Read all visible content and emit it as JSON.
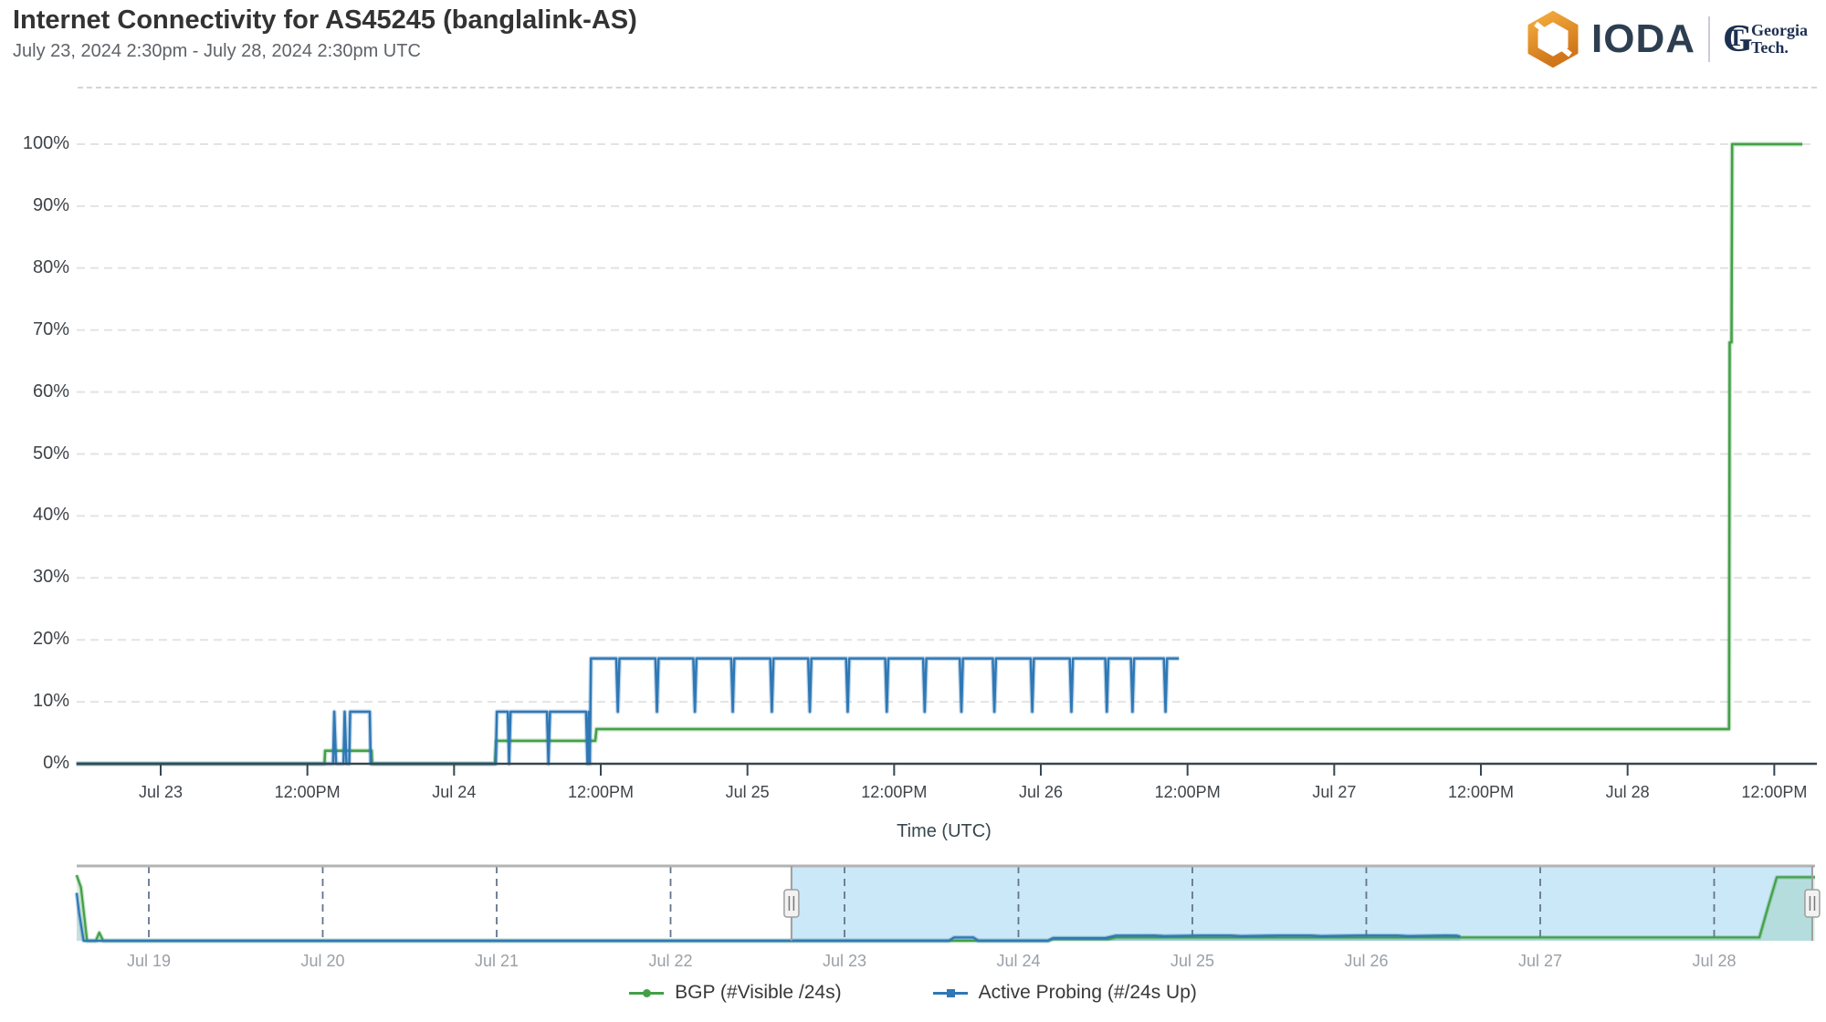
{
  "header": {
    "title": "Internet Connectivity for AS45245 (banglalink-AS)",
    "subtitle": "July 23, 2024 2:30pm - July 28, 2024 2:30pm UTC",
    "brand": {
      "ioda_wordmark": "IODA",
      "gt_monogram_g": "G",
      "gt_monogram_t": "T",
      "georgia": "Georgia",
      "tech": "Tech."
    }
  },
  "colors": {
    "bgp_green": "#43a047",
    "probing_blue": "#2f78b5",
    "grid_line": "#e3e3e3",
    "axis_line": "#37474f",
    "nav_grid": "#64748b",
    "brush_fill": "#cbe8f8",
    "handle_fill": "#f2f2f2",
    "handle_border": "#9e9e9e",
    "navy": "#2d3e50",
    "logo_orange_light": "#f3ab3c",
    "logo_orange_dark": "#d0771b"
  },
  "main_chart": {
    "axis_title": "Time (UTC)",
    "y_ticks": [
      {
        "value": 0,
        "label": "0%"
      },
      {
        "value": 10,
        "label": "10%"
      },
      {
        "value": 20,
        "label": "20%"
      },
      {
        "value": 30,
        "label": "30%"
      },
      {
        "value": 40,
        "label": "40%"
      },
      {
        "value": 50,
        "label": "50%"
      },
      {
        "value": 60,
        "label": "60%"
      },
      {
        "value": 70,
        "label": "70%"
      },
      {
        "value": 80,
        "label": "80%"
      },
      {
        "value": 90,
        "label": "90%"
      },
      {
        "value": 100,
        "label": "100%"
      }
    ],
    "x_ticks": [
      {
        "hour": 0,
        "label": "Jul 23"
      },
      {
        "hour": 12,
        "label": "12:00PM"
      },
      {
        "hour": 24,
        "label": "Jul 24"
      },
      {
        "hour": 36,
        "label": "12:00PM"
      },
      {
        "hour": 48,
        "label": "Jul 25"
      },
      {
        "hour": 60,
        "label": "12:00PM"
      },
      {
        "hour": 72,
        "label": "Jul 26"
      },
      {
        "hour": 84,
        "label": "12:00PM"
      },
      {
        "hour": 96,
        "label": "Jul 27"
      },
      {
        "hour": 108,
        "label": "12:00PM"
      },
      {
        "hour": 120,
        "label": "Jul 28"
      },
      {
        "hour": 132,
        "label": "12:00PM"
      }
    ]
  },
  "navigator": {
    "ticks": [
      {
        "day": 0,
        "label": "Jul 19"
      },
      {
        "day": 1,
        "label": "Jul 20"
      },
      {
        "day": 2,
        "label": "Jul 21"
      },
      {
        "day": 3,
        "label": "Jul 22"
      },
      {
        "day": 4,
        "label": "Jul 23"
      },
      {
        "day": 5,
        "label": "Jul 24"
      },
      {
        "day": 6,
        "label": "Jul 25"
      },
      {
        "day": 7,
        "label": "Jul 26"
      },
      {
        "day": 8,
        "label": "Jul 27"
      },
      {
        "day": 9,
        "label": "Jul 28"
      }
    ],
    "brush": {
      "start_day": 3.695,
      "end_day": 9.564
    }
  },
  "legend": {
    "bgp_label": "BGP (#Visible /24s)",
    "probing_label": "Active Probing (#/24s Up)"
  },
  "chart_data": {
    "type": "line",
    "main": {
      "x_unit": "hours since Jul 23 2024 00:00 UTC",
      "y_unit": "percent",
      "x_range": [
        -6.9,
        135.1
      ],
      "ylim": [
        0,
        100
      ],
      "grid": "dashed-horizontal",
      "series": [
        {
          "name": "BGP (#Visible /24s)",
          "points": [
            [
              -6.9,
              0
            ],
            [
              13.4,
              0
            ],
            [
              13.45,
              2.1
            ],
            [
              17.25,
              2.1
            ],
            [
              17.3,
              0
            ],
            [
              27.35,
              0
            ],
            [
              27.45,
              3.7
            ],
            [
              35.55,
              3.7
            ],
            [
              35.65,
              5.6
            ],
            [
              128.3,
              5.6
            ],
            [
              128.35,
              68
            ],
            [
              128.5,
              68
            ],
            [
              128.55,
              100
            ],
            [
              134.3,
              100
            ]
          ]
        },
        {
          "name": "Active Probing (#/24s Up)",
          "points_early": [
            [
              -6.9,
              0
            ],
            [
              14.1,
              0
            ],
            [
              14.2,
              8.4
            ],
            [
              14.35,
              0
            ],
            [
              14.95,
              0
            ],
            [
              15.05,
              8.4
            ],
            [
              15.2,
              0
            ],
            [
              15.42,
              0
            ],
            [
              15.5,
              8.4
            ],
            [
              17.1,
              8.4
            ],
            [
              17.18,
              0
            ],
            [
              27.4,
              0
            ],
            [
              27.5,
              8.4
            ],
            [
              28.4,
              8.4
            ],
            [
              28.5,
              0
            ],
            [
              28.62,
              8.4
            ],
            [
              31.6,
              8.4
            ],
            [
              31.72,
              0
            ],
            [
              31.85,
              8.4
            ],
            [
              34.8,
              8.4
            ],
            [
              34.92,
              0
            ],
            [
              35.02,
              8.4
            ],
            [
              35.1,
              0
            ],
            [
              35.2,
              17
            ]
          ],
          "plateau": {
            "start": 35.2,
            "end": 83.3,
            "level": 17,
            "dip_level": 8.4,
            "dip_half_width": 0.13,
            "dip_hours": [
              37.4,
              40.6,
              43.7,
              46.8,
              50.0,
              53.1,
              56.2,
              59.4,
              62.5,
              65.5,
              68.2,
              71.3,
              74.5,
              77.4,
              79.5,
              82.2
            ]
          }
        }
      ]
    },
    "navigator": {
      "x_unit": "days since Jul 19 2024 00:00 UTC",
      "x_range": [
        -0.415,
        9.58
      ],
      "ylim": [
        0,
        100
      ],
      "series": [
        {
          "name": "BGP (#Visible /24s)",
          "points": [
            [
              -0.415,
              96
            ],
            [
              -0.39,
              78
            ],
            [
              -0.355,
              0
            ],
            [
              -0.305,
              0
            ],
            [
              -0.285,
              12
            ],
            [
              -0.262,
              0
            ],
            [
              5.17,
              0
            ],
            [
              5.2,
              2.5
            ],
            [
              5.52,
              2.5
            ],
            [
              5.56,
              5
            ],
            [
              9.26,
              5
            ],
            [
              9.31,
              50
            ],
            [
              9.36,
              93
            ],
            [
              9.58,
              93
            ]
          ]
        },
        {
          "name": "Active Probing (#/24s Up)",
          "points": [
            [
              -0.415,
              70
            ],
            [
              -0.4,
              40
            ],
            [
              -0.375,
              0
            ],
            [
              4.6,
              0
            ],
            [
              4.63,
              5
            ],
            [
              4.74,
              5
            ],
            [
              4.77,
              0
            ],
            [
              5.17,
              0
            ],
            [
              5.2,
              4
            ],
            [
              5.5,
              4
            ],
            [
              5.56,
              7.6
            ],
            [
              5.78,
              7.8
            ],
            [
              5.84,
              6.9
            ],
            [
              6.05,
              7.8
            ],
            [
              6.22,
              7.8
            ],
            [
              6.28,
              6.9
            ],
            [
              6.5,
              7.8
            ],
            [
              6.68,
              7.8
            ],
            [
              6.74,
              6.9
            ],
            [
              6.95,
              7.8
            ],
            [
              7.18,
              7.8
            ],
            [
              7.24,
              6.9
            ],
            [
              7.45,
              7.8
            ],
            [
              7.52,
              7.5
            ],
            [
              7.54,
              6.3
            ]
          ]
        }
      ]
    }
  }
}
